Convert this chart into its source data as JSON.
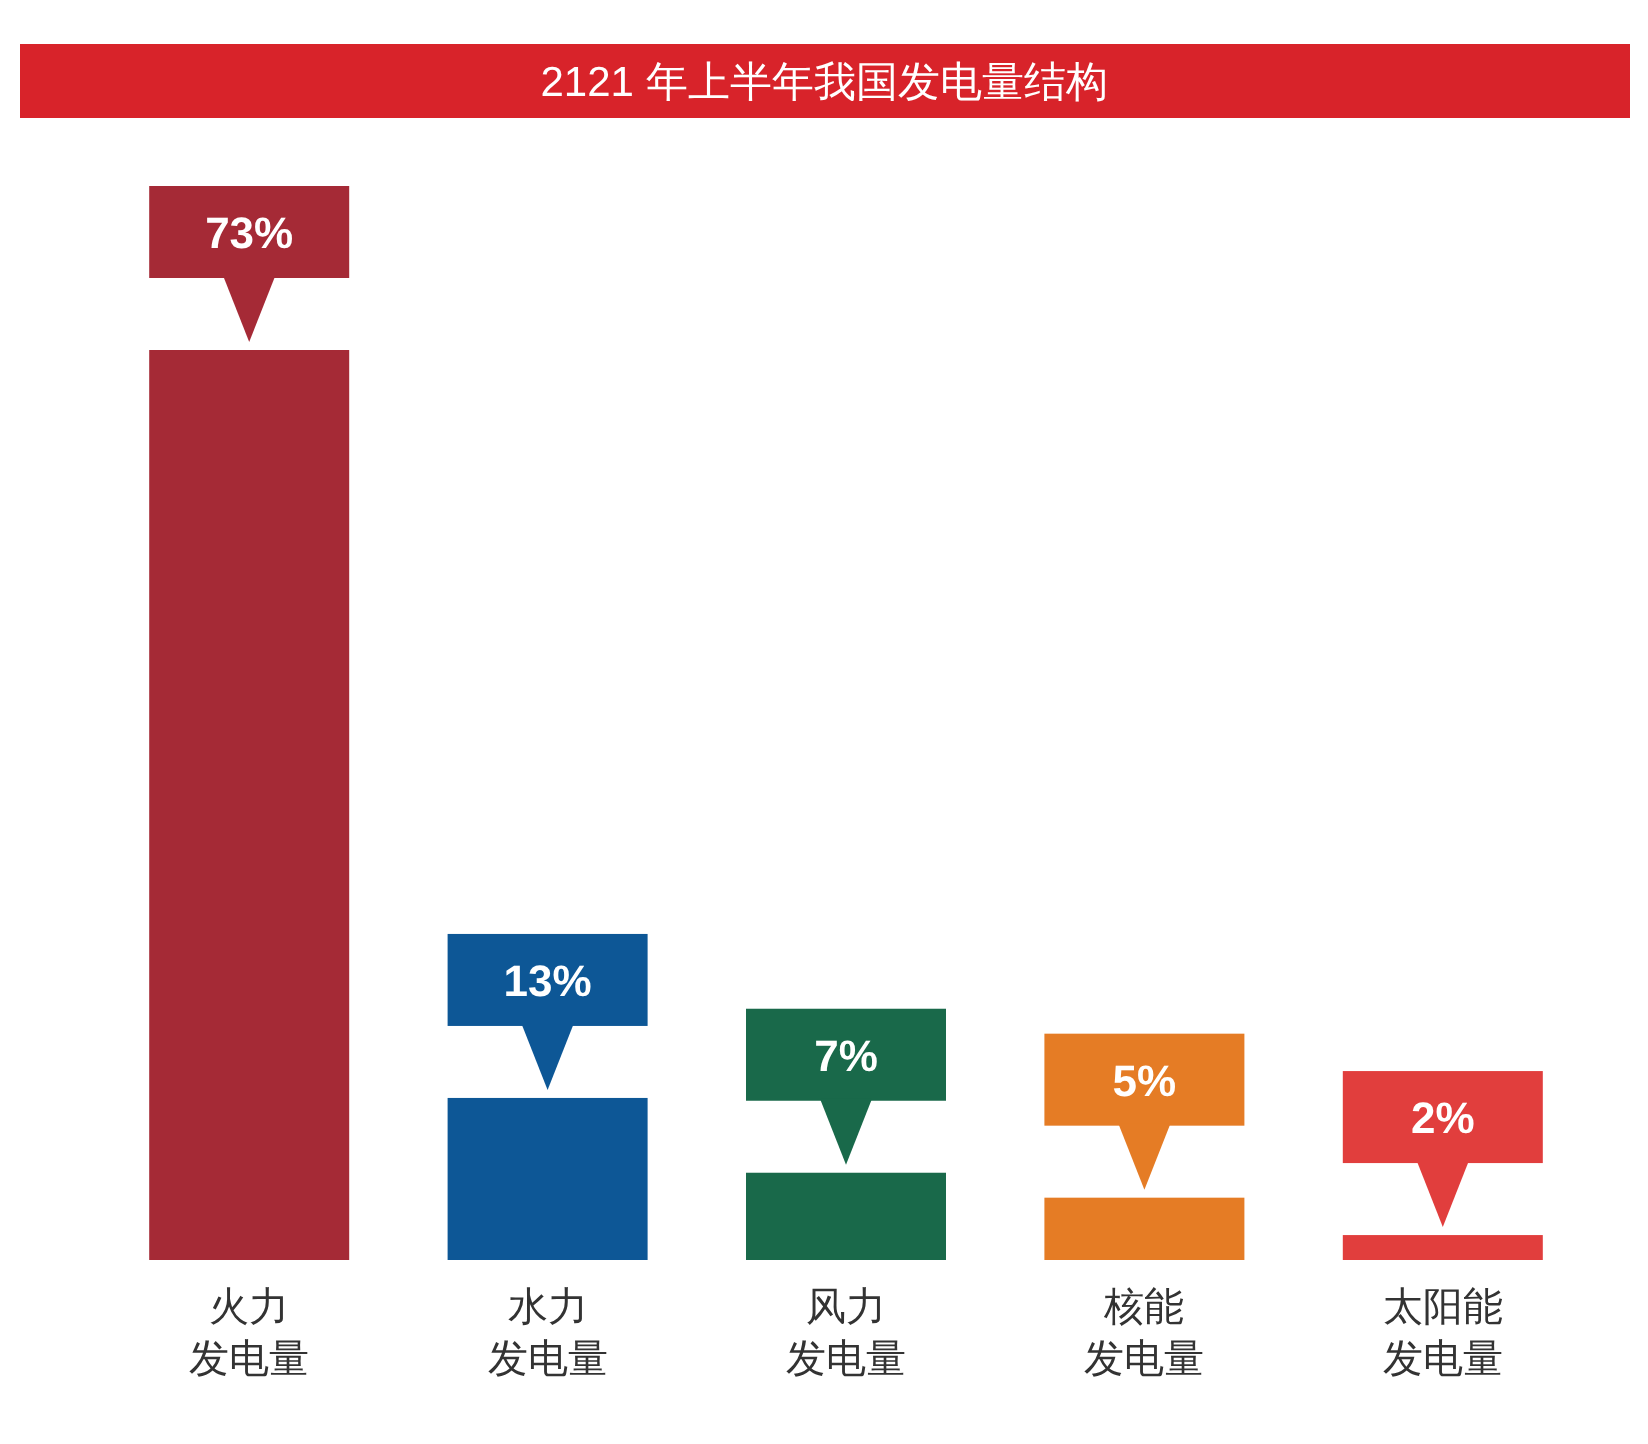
{
  "chart_data": {
    "type": "bar",
    "title": "2121 年上半年我国发电量结构",
    "categories": [
      "火力发电量",
      "水力发电量",
      "风力发电量",
      "核能发电量",
      "太阳能发电量"
    ],
    "values": [
      73,
      13,
      7,
      5,
      2
    ],
    "value_labels": [
      "73%",
      "13%",
      "7%",
      "5%",
      "2%"
    ],
    "colors": [
      "#a52a36",
      "#0d5796",
      "#19694a",
      "#e57c25",
      "#e13e3d"
    ]
  }
}
